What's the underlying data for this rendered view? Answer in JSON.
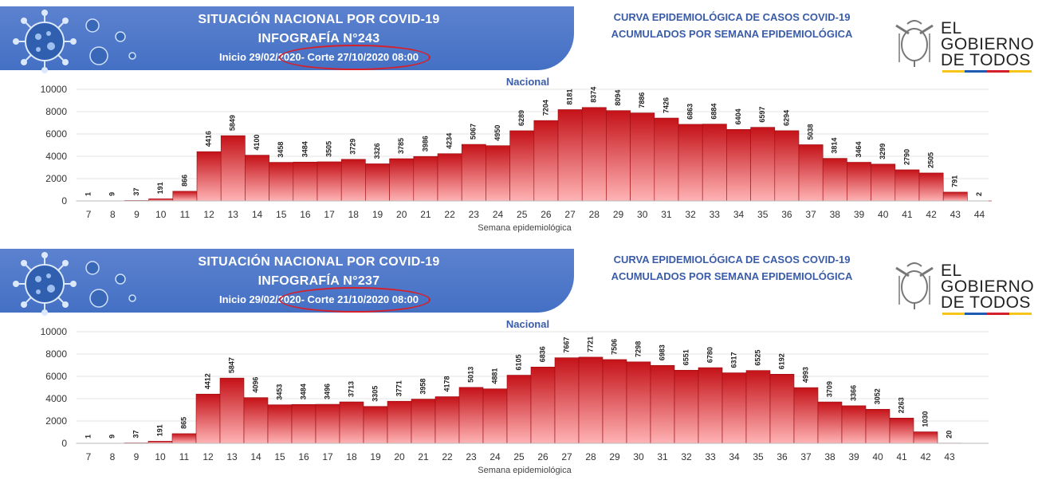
{
  "panels": [
    {
      "banner": {
        "title_line1": "SITUACIÓN NACIONAL POR  COVID-19",
        "title_line2": "INFOGRAFÍA N°243",
        "inicio": "Inicio 29/02/2020",
        "corte": "- Corte 27/10/2020 08:00"
      },
      "curve_title_line1": "CURVA EPIDEMIOLÓGICA DE CASOS COVID-19",
      "curve_title_line2": "ACUMULADOS POR SEMANA EPIDEMIOLÓGICA",
      "logo": {
        "line1": "EL",
        "line2": "GOBIERNO",
        "line3": "DE TODOS"
      }
    },
    {
      "banner": {
        "title_line1": "SITUACIÓN NACIONAL POR  COVID-19",
        "title_line2": "INFOGRAFÍA N°237",
        "inicio": "Inicio 29/02/2020",
        "corte": "- Corte 21/10/2020 08:00"
      },
      "curve_title_line1": "CURVA EPIDEMIOLÓGICA DE CASOS COVID-19",
      "curve_title_line2": "ACUMULADOS POR SEMANA EPIDEMIOLÓGICA",
      "logo": {
        "line1": "EL",
        "line2": "GOBIERNO",
        "line3": "DE TODOS"
      }
    }
  ],
  "chart_data": [
    {
      "type": "bar",
      "title": "Nacional",
      "xlabel": "Semana epidemiológica",
      "ylabel": "",
      "ylim": [
        0,
        10000
      ],
      "yticks": [
        0,
        2000,
        4000,
        6000,
        8000,
        10000
      ],
      "categories": [
        "7",
        "8",
        "9",
        "10",
        "11",
        "12",
        "13",
        "14",
        "15",
        "16",
        "17",
        "18",
        "19",
        "20",
        "21",
        "22",
        "23",
        "24",
        "25",
        "26",
        "27",
        "28",
        "29",
        "30",
        "31",
        "32",
        "33",
        "34",
        "35",
        "36",
        "37",
        "38",
        "39",
        "40",
        "41",
        "42",
        "43",
        "44"
      ],
      "values": [
        1,
        9,
        37,
        191,
        866,
        4416,
        5849,
        4100,
        3458,
        3484,
        3505,
        3729,
        3326,
        3785,
        3986,
        4234,
        5067,
        4950,
        6289,
        7204,
        8181,
        8374,
        8094,
        7886,
        7426,
        6863,
        6884,
        6404,
        6597,
        6294,
        5038,
        3814,
        3464,
        3299,
        2790,
        2505,
        791,
        2
      ]
    },
    {
      "type": "bar",
      "title": "Nacional",
      "xlabel": "Semana epidemiológica",
      "ylabel": "",
      "ylim": [
        0,
        10000
      ],
      "yticks": [
        0,
        2000,
        4000,
        6000,
        8000,
        10000
      ],
      "categories": [
        "7",
        "8",
        "9",
        "10",
        "11",
        "12",
        "13",
        "14",
        "15",
        "16",
        "17",
        "18",
        "19",
        "20",
        "21",
        "22",
        "23",
        "24",
        "25",
        "26",
        "27",
        "28",
        "29",
        "30",
        "31",
        "32",
        "33",
        "34",
        "35",
        "36",
        "37",
        "38",
        "39",
        "40",
        "41",
        "42",
        "43"
      ],
      "values": [
        1,
        9,
        37,
        191,
        865,
        4412,
        5847,
        4096,
        3453,
        3484,
        3496,
        3713,
        3305,
        3771,
        3958,
        4178,
        5013,
        4881,
        6105,
        6836,
        7667,
        7721,
        7506,
        7298,
        6983,
        6551,
        6780,
        6317,
        6525,
        6192,
        4993,
        3709,
        3366,
        3052,
        2263,
        1030,
        20
      ]
    }
  ],
  "colors": {
    "banner": "#4a74c6",
    "bar_top": "#c41218",
    "bar_bottom": "#ffb3b5",
    "title_blue": "#3a5ca8",
    "ring_red": "#d6202a"
  }
}
